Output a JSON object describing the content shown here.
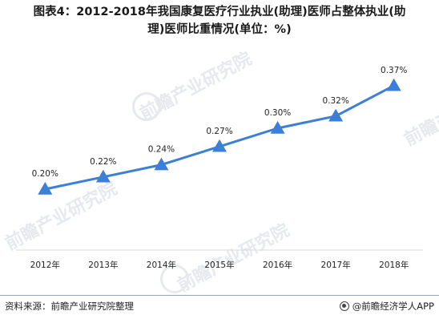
{
  "title": {
    "line1": "图表4：2012-2018年我国康复医疗行业执业(助理)医师占整体执业(助",
    "line2": "理)医师比重情况(单位：%)"
  },
  "watermark": {
    "text": "前瞻产业研究院"
  },
  "footer": {
    "source": "资料来源：前瞻产业研究院整理",
    "brand": "@前瞻经济学人APP"
  },
  "colors": {
    "line": "#3b7fd6",
    "marker": "#3b7fd6",
    "axis": "#d9d9d9",
    "label": "#222222"
  },
  "chart_data": {
    "type": "line",
    "categories": [
      "2012年",
      "2013年",
      "2014年",
      "2015年",
      "2016年",
      "2017年",
      "2018年"
    ],
    "values": [
      0.2,
      0.22,
      0.24,
      0.27,
      0.3,
      0.32,
      0.37
    ],
    "data_labels": [
      "0.20%",
      "0.22%",
      "0.24%",
      "0.27%",
      "0.30%",
      "0.32%",
      "0.37%"
    ],
    "marker": "triangle",
    "grid": false,
    "legend": "none",
    "y_axis_visible": false,
    "ylim": [
      0.1,
      0.4
    ]
  }
}
